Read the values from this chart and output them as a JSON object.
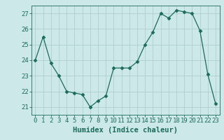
{
  "x": [
    0,
    1,
    2,
    3,
    4,
    5,
    6,
    7,
    8,
    9,
    10,
    11,
    12,
    13,
    14,
    15,
    16,
    17,
    18,
    19,
    20,
    21,
    22,
    23
  ],
  "y": [
    24.0,
    25.5,
    23.8,
    23.0,
    22.0,
    21.9,
    21.8,
    21.0,
    21.4,
    21.7,
    23.5,
    23.5,
    23.5,
    23.9,
    25.0,
    25.8,
    27.0,
    26.7,
    27.2,
    27.1,
    27.0,
    25.9,
    23.1,
    21.2
  ],
  "xlabel": "Humidex (Indice chaleur)",
  "ylim": [
    20.5,
    27.5
  ],
  "xlim": [
    -0.5,
    23.5
  ],
  "yticks": [
    21,
    22,
    23,
    24,
    25,
    26,
    27
  ],
  "xticks": [
    0,
    1,
    2,
    3,
    4,
    5,
    6,
    7,
    8,
    9,
    10,
    11,
    12,
    13,
    14,
    15,
    16,
    17,
    18,
    19,
    20,
    21,
    22,
    23
  ],
  "line_color": "#1a6b5a",
  "marker": "D",
  "marker_size": 2.5,
  "bg_color": "#cde8e8",
  "grid_color": "#afd0d0",
  "tick_color": "#1a6b5a",
  "label_color": "#1a6b5a",
  "tick_fontsize": 6.5,
  "xlabel_fontsize": 7.5
}
